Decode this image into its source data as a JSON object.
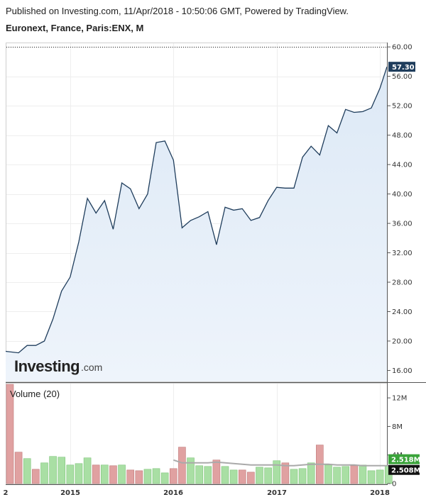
{
  "header": {
    "published": "Published on Investing.com, 11/Apr/2018 - 10:50:06 GMT, Powered by TradingView.",
    "instrument": "Euronext, France, Paris:ENX, M"
  },
  "logo": {
    "name": "Investing",
    "suffix": ".com"
  },
  "colors": {
    "price_line": "#1f3d5c",
    "area_fill": "#dde9f6",
    "up_bar": "#a9dfa4",
    "down_bar": "#e0a1a1",
    "last_price_badge": "#1f3d5c",
    "vol_badge_green": "#3aa33a",
    "vol_badge_dark": "#111111",
    "vol_ma_line": "#aaaaaa"
  },
  "chart_data": [
    {
      "type": "area",
      "name": "price",
      "x_labels": [
        "2",
        "2015",
        "2016",
        "2017",
        "2018"
      ],
      "y_ticks": [
        "60.00",
        "56.00",
        "52.00",
        "48.00",
        "44.00",
        "40.00",
        "36.00",
        "32.00",
        "28.00",
        "24.00",
        "20.00",
        "16.00"
      ],
      "ylim": [
        14.5,
        60.5
      ],
      "reference_line": 60,
      "last_price_label": "57.30",
      "values": [
        18.6,
        18.4,
        19.4,
        19.4,
        20.0,
        23.0,
        26.8,
        28.7,
        33.5,
        39.4,
        37.4,
        39.1,
        35.2,
        41.5,
        40.7,
        38.0,
        40.0,
        47.0,
        47.2,
        44.6,
        35.4,
        36.4,
        36.9,
        37.6,
        33.1,
        38.2,
        37.8,
        38.0,
        36.4,
        36.8,
        39.1,
        40.9,
        40.8,
        40.8,
        45.0,
        46.5,
        45.3,
        49.3,
        48.3,
        51.5,
        51.1,
        51.2,
        51.7,
        54.4,
        57.3
      ],
      "grid": true
    },
    {
      "type": "bar",
      "name": "volume",
      "title": "Volume (20)",
      "y_ticks": [
        "12M",
        "8M",
        "4M",
        "0"
      ],
      "ylim": [
        0,
        14
      ],
      "up_label": "2.518M",
      "ma_label": "2.508M",
      "values": [
        13.9,
        4.4,
        3.5,
        2.0,
        2.9,
        3.8,
        3.7,
        2.6,
        2.8,
        3.6,
        2.6,
        2.6,
        2.5,
        2.6,
        1.9,
        1.8,
        2.0,
        2.1,
        1.5,
        2.1,
        5.1,
        3.6,
        2.5,
        2.4,
        3.3,
        2.4,
        1.9,
        1.9,
        1.6,
        2.3,
        2.2,
        3.2,
        2.9,
        2.0,
        2.1,
        2.9,
        5.4,
        2.6,
        2.3,
        2.4,
        2.5,
        2.6,
        1.8,
        1.9,
        2.5
      ],
      "up": [
        false,
        false,
        true,
        false,
        true,
        true,
        true,
        true,
        true,
        true,
        false,
        true,
        false,
        true,
        false,
        false,
        true,
        true,
        true,
        false,
        false,
        true,
        true,
        true,
        false,
        true,
        true,
        false,
        false,
        true,
        true,
        true,
        false,
        true,
        true,
        true,
        false,
        true,
        true,
        true,
        false,
        true,
        true,
        true,
        true
      ],
      "ma": {
        "start_index": 19,
        "values": [
          3.3,
          2.9,
          2.9,
          2.9,
          2.9,
          3.0,
          2.9,
          2.8,
          2.7,
          2.6,
          2.6,
          2.6,
          2.6,
          2.5,
          2.5,
          2.6,
          2.7,
          2.7,
          2.7,
          2.6,
          2.6,
          2.6,
          2.5,
          2.5,
          2.5,
          2.5
        ]
      }
    }
  ]
}
